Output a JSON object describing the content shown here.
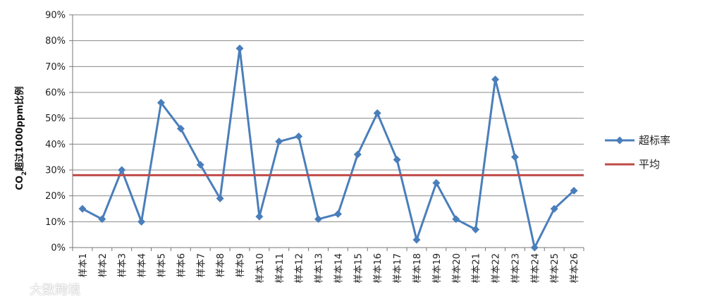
{
  "chart_data": {
    "type": "line",
    "ylabel_main": "CO",
    "ylabel_sub": "2",
    "ylabel_rest": "超过1000ppm比例",
    "ylim": [
      0,
      90
    ],
    "ytick_step": 10,
    "ytick_labels": [
      "0%",
      "10%",
      "20%",
      "30%",
      "40%",
      "50%",
      "60%",
      "70%",
      "80%",
      "90%"
    ],
    "grid": true,
    "legend_position": "right",
    "categories": [
      "样本1",
      "样本2",
      "样本3",
      "样本4",
      "样本5",
      "样本6",
      "样本7",
      "样本8",
      "样本9",
      "样本10",
      "样本11",
      "样本12",
      "样本13",
      "样本14",
      "样本15",
      "样本16",
      "样本17",
      "样本18",
      "样本19",
      "样本20",
      "样本21",
      "样本22",
      "样本23",
      "样本24",
      "样本25",
      "样本26"
    ],
    "series": [
      {
        "name": "超标率",
        "color": "#4a7ebb",
        "marker": "diamond",
        "values": [
          15,
          11,
          30,
          10,
          56,
          46,
          32,
          19,
          77,
          12,
          41,
          43,
          11,
          13,
          36,
          52,
          34,
          3,
          25,
          11,
          7,
          65,
          35,
          0,
          15,
          22
        ]
      },
      {
        "name": "平均",
        "color": "#be4b48",
        "marker": "none",
        "values": [
          28,
          28,
          28,
          28,
          28,
          28,
          28,
          28,
          28,
          28,
          28,
          28,
          28,
          28,
          28,
          28,
          28,
          28,
          28,
          28,
          28,
          28,
          28,
          28,
          28,
          28
        ]
      }
    ]
  },
  "watermark": {
    "text": "大数跨境",
    "icon": "chat-bubble-logo-icon"
  }
}
